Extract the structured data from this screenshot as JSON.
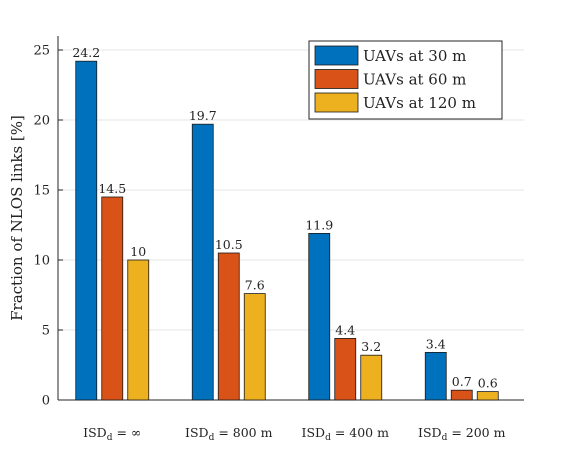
{
  "chart_data": {
    "type": "bar",
    "title": "",
    "xlabel": "",
    "ylabel": "Fraction of NLOS links [%]",
    "ylim": [
      0,
      26
    ],
    "yticks": [
      0,
      5,
      10,
      15,
      20,
      25
    ],
    "grid": true,
    "legend_position": "top-right",
    "categories": [
      {
        "base": "ISD",
        "sub": "d",
        "rest": " = ∞"
      },
      {
        "base": "ISD",
        "sub": "d",
        "rest": " = 800 m"
      },
      {
        "base": "ISD",
        "sub": "d",
        "rest": " = 400 m"
      },
      {
        "base": "ISD",
        "sub": "d",
        "rest": " = 200 m"
      }
    ],
    "series": [
      {
        "name": "UAVs at 30 m",
        "color": "#0072BD",
        "values": [
          24.2,
          19.7,
          11.9,
          3.4
        ],
        "labels": [
          "24.2",
          "19.7",
          "11.9",
          "3.4"
        ]
      },
      {
        "name": "UAVs at 60 m",
        "color": "#D95319",
        "values": [
          14.5,
          10.5,
          4.4,
          0.7
        ],
        "labels": [
          "14.5",
          "10.5",
          "4.4",
          "0.7"
        ]
      },
      {
        "name": "UAVs at 120 m",
        "color": "#EDB120",
        "values": [
          10,
          7.6,
          3.2,
          0.6
        ],
        "labels": [
          "10",
          "7.6",
          "3.2",
          "0.6"
        ]
      }
    ]
  }
}
